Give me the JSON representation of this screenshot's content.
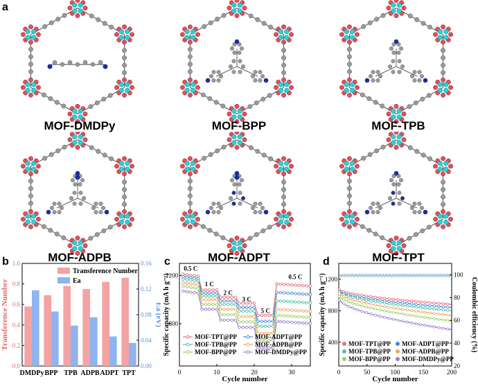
{
  "panel_letters": {
    "a": "a",
    "b": "b",
    "c": "c",
    "d": "d"
  },
  "structures": [
    {
      "label": "MOF-DMDPy",
      "linker": "dmdpy"
    },
    {
      "label": "MOF-BPP",
      "linker": "bpp"
    },
    {
      "label": "MOF-TPB",
      "linker": "tpb"
    },
    {
      "label": "MOF-ADPB",
      "linker": "adpb"
    },
    {
      "label": "MOF-ADPT",
      "linker": "adpt"
    },
    {
      "label": "MOF-TPT",
      "linker": "tpt"
    }
  ],
  "colors": {
    "oxygen": "#e0505a",
    "metal": "#2ecfd6",
    "carbon": "#9a9a9a",
    "nitrogen": "#1b2f9e",
    "bar_transference": "#f3a3a3",
    "bar_ea": "#8fb4ef",
    "axis_left_b": "#e06b6b",
    "axis_right_b": "#5b8ee0"
  },
  "chart_data": [
    {
      "type": "bar",
      "categories": [
        "DMDPy",
        "BPP",
        "TPB",
        "ADPB",
        "ADPT",
        "TPT"
      ],
      "series": [
        {
          "name": "Transference Number",
          "axis": "left",
          "values": [
            0.58,
            0.69,
            0.78,
            0.75,
            0.82,
            0.86
          ],
          "color": "#f3a3a3"
        },
        {
          "name": "Ea",
          "axis": "right",
          "values": [
            0.118,
            0.085,
            0.063,
            0.076,
            0.046,
            0.036
          ],
          "color": "#8fb4ef"
        }
      ],
      "ylabel": "Transference Number",
      "ylabel_right": "Ea (eV)",
      "ylim": [
        0.0,
        1.0
      ],
      "ylim_right": [
        0.0,
        0.16
      ],
      "yticks": [
        "0.0",
        "0.2",
        "0.4",
        "0.6",
        "0.8",
        "1.0"
      ],
      "yticks_right": [
        "0.00",
        "0.04",
        "0.08",
        "0.12",
        "0.16"
      ],
      "legend_position": "top-right"
    },
    {
      "type": "line",
      "xlabel": "Cycle number",
      "ylabel": "Specific capacity (mA h g⁻¹)",
      "xlim": [
        0,
        35
      ],
      "ylim": [
        450,
        1300
      ],
      "xticks": [
        "0",
        "10",
        "20",
        "30"
      ],
      "yticks": [
        "400",
        "800",
        "1200"
      ],
      "annotations": [
        "0.5 C",
        "1 C",
        "2 C",
        "3 C",
        "5 C",
        "0.5 C"
      ],
      "legend_position": "bottom",
      "series": [
        {
          "name": "MOF-TPT@PP",
          "color": "#e8707a",
          "marker": "square",
          "levels": [
            1210,
            1080,
            1020,
            970,
            870,
            1130
          ]
        },
        {
          "name": "MOF-ADPT@PP",
          "color": "#4a86d8",
          "marker": "triangle",
          "levels": [
            1190,
            1055,
            990,
            935,
            820,
            1060
          ]
        },
        {
          "name": "MOF-TPB@PP",
          "color": "#4fc1a6",
          "marker": "circle",
          "levels": [
            1170,
            1030,
            960,
            905,
            780,
            990
          ]
        },
        {
          "name": "MOF-ADPB@PP",
          "color": "#f0a860",
          "marker": "circle",
          "levels": [
            1140,
            1000,
            920,
            860,
            720,
            920
          ]
        },
        {
          "name": "MOF-BPP@PP",
          "color": "#9bd06a",
          "marker": "triangle",
          "levels": [
            1110,
            960,
            875,
            815,
            660,
            870
          ]
        },
        {
          "name": "MOF-DMDPy@PP",
          "color": "#9a7ed0",
          "marker": "circle",
          "levels": [
            1070,
            920,
            830,
            770,
            600,
            820
          ]
        }
      ]
    },
    {
      "type": "scatter",
      "xlabel": "Cycle number",
      "ylabel": "Specific capacity (mA h g⁻¹)",
      "ylabel_right": "Coulombic efficiency (%)",
      "xlim": [
        0,
        200
      ],
      "ylim": [
        100,
        1400
      ],
      "ylim_right": [
        20,
        110
      ],
      "xticks": [
        "0",
        "50",
        "100",
        "150",
        "200"
      ],
      "yticks": [
        "400",
        "800",
        "1200"
      ],
      "yticks_right": [
        "20",
        "40",
        "60",
        "80",
        "100"
      ],
      "legend_position": "bottom",
      "coulombic_efficiency": 99.5,
      "series": [
        {
          "name": "MOF-TPT@PP",
          "color": "#e8707a",
          "start": 1080,
          "end": 880
        },
        {
          "name": "MOF-ADPT@PP",
          "color": "#4a86d8",
          "start": 1060,
          "end": 840
        },
        {
          "name": "MOF-TPB@PP",
          "color": "#4fc1a6",
          "start": 1050,
          "end": 800
        },
        {
          "name": "MOF-ADPB@PP",
          "color": "#f0a860",
          "start": 1030,
          "end": 740
        },
        {
          "name": "MOF-BPP@PP",
          "color": "#9bd06a",
          "start": 1000,
          "end": 670
        },
        {
          "name": "MOF-DMDPy@PP",
          "color": "#9a7ed0",
          "start": 960,
          "end": 560
        }
      ]
    }
  ]
}
